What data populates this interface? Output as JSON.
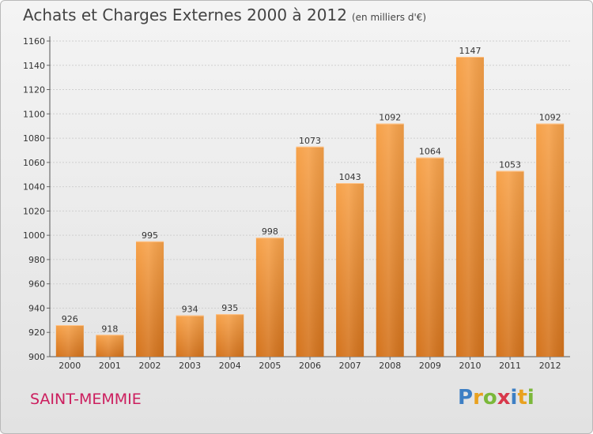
{
  "header": {
    "title": "Achats et Charges Externes 2000 à 2012",
    "unit": "(en milliers d'€)"
  },
  "footer": {
    "commune": "SAINT-MEMMIE",
    "brand": "Proxiti",
    "brand_colors": [
      "#3d7fc4",
      "#e9a11f",
      "#7bb83a",
      "#d8384b"
    ]
  },
  "chart_data": {
    "type": "bar",
    "title": "Achats et Charges Externes 2000 à 2012",
    "subtitle": "(en milliers d'€)",
    "xlabel": "",
    "ylabel": "",
    "categories": [
      "2000",
      "2001",
      "2002",
      "2003",
      "2004",
      "2005",
      "2006",
      "2007",
      "2008",
      "2009",
      "2010",
      "2011",
      "2012"
    ],
    "values": [
      926,
      918,
      995,
      934,
      935,
      998,
      1073,
      1043,
      1092,
      1064,
      1147,
      1053,
      1092
    ],
    "ylim": [
      900,
      1160
    ],
    "yticks": [
      900,
      920,
      940,
      960,
      980,
      1000,
      1020,
      1040,
      1060,
      1080,
      1100,
      1120,
      1140,
      1160
    ],
    "grid": true,
    "bar_color": "#f0963a",
    "bar_color_dark": "#d97a1e"
  }
}
